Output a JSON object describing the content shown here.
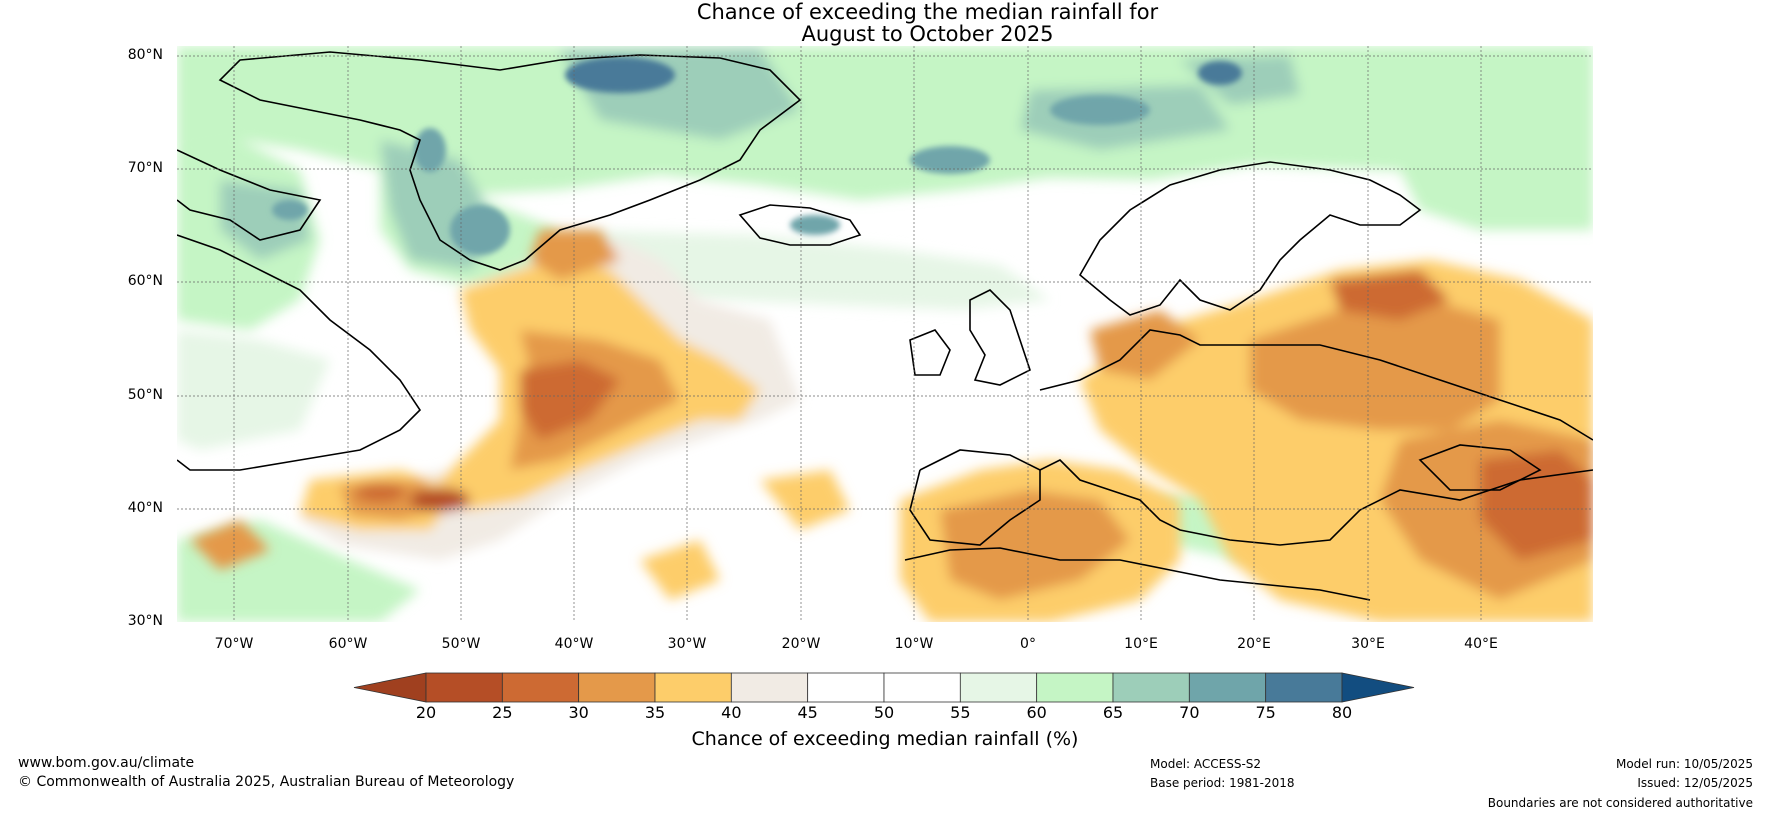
{
  "title_line1": "Chance of exceeding the median rainfall for",
  "title_line2": "August to October 2025",
  "latitude_labels": [
    "80°N",
    "70°N",
    "60°N",
    "50°N",
    "40°N",
    "30°N"
  ],
  "longitude_labels": [
    "70°W",
    "60°W",
    "50°W",
    "40°W",
    "30°W",
    "20°W",
    "10°W",
    "0°",
    "10°E",
    "20°E",
    "30°E",
    "40°E"
  ],
  "colorbar": {
    "ticks": [
      "20",
      "25",
      "30",
      "35",
      "40",
      "45",
      "50",
      "55",
      "60",
      "65",
      "70",
      "75",
      "80"
    ],
    "label": "Chance of exceeding median rainfall (%)",
    "colors": [
      "#a0401f",
      "#b54e26",
      "#cd6a33",
      "#e4994a",
      "#fdcd6a",
      "#f1ebe4",
      "#ffffff",
      "#ffffff",
      "#e6f6e6",
      "#c5f5c5",
      "#9dceb9",
      "#6fa5aa",
      "#487a99",
      "#124d80"
    ]
  },
  "footer": {
    "website": "www.bom.gov.au/climate",
    "copyright": "© Commonwealth of Australia 2025, Australian Bureau of Meteorology",
    "model": "Model: ACCESS-S2",
    "base_period": "Base period: 1981-2018",
    "model_run": "Model run: 10/05/2025",
    "issued": "Issued: 12/05/2025",
    "disclaimer": "Boundaries are not considered authoritative"
  }
}
